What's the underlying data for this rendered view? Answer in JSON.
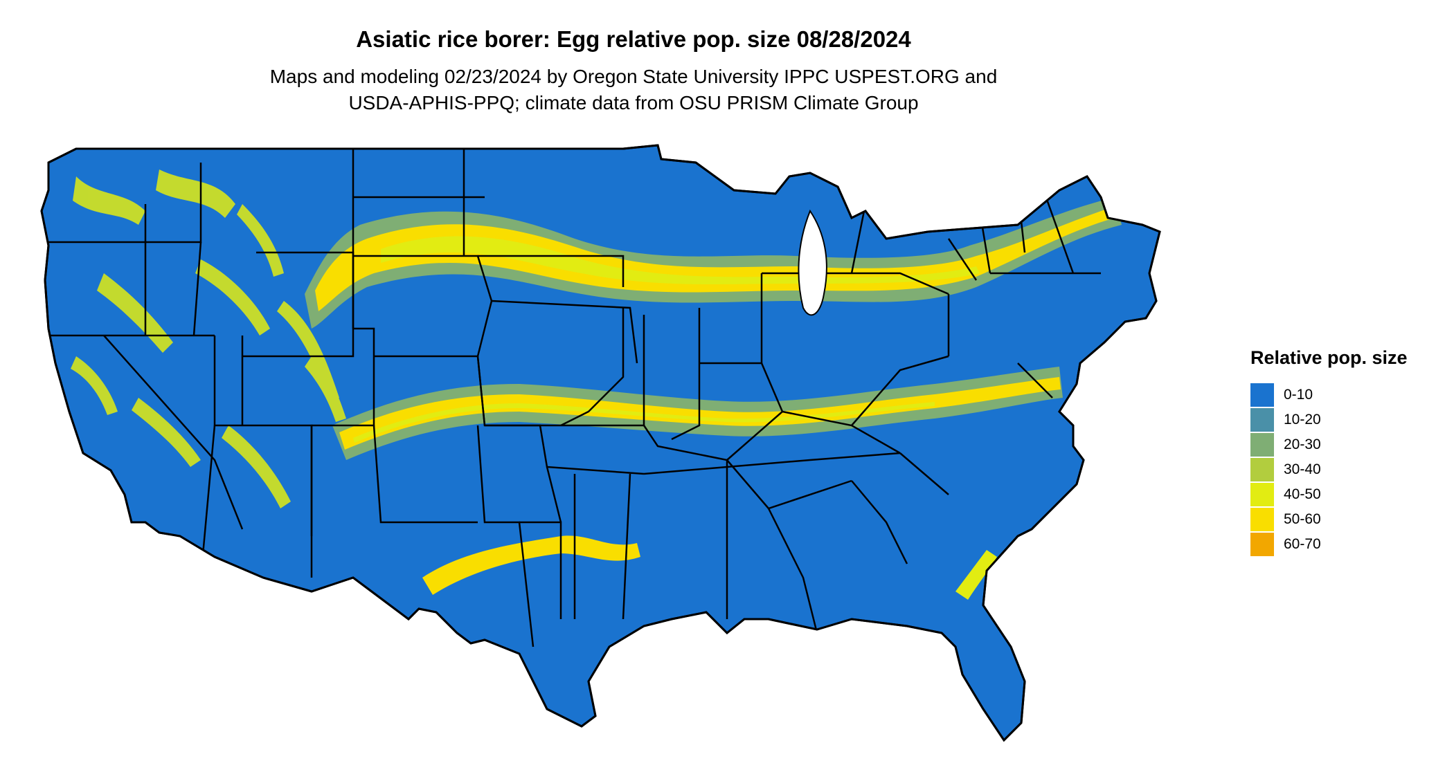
{
  "header": {
    "title": "Asiatic rice borer: Egg relative pop. size 08/28/2024",
    "subtitle_line1": "Maps and modeling 02/23/2024 by Oregon State University IPPC USPEST.ORG and",
    "subtitle_line2": "USDA-APHIS-PPQ; climate data from OSU PRISM Climate Group"
  },
  "map": {
    "region": "contiguous-united-states",
    "base_color": "#1a73cf",
    "border_color": "#000000"
  },
  "legend": {
    "title": "Relative pop. size",
    "items": [
      {
        "label": "0-10",
        "color": "#1a73cf"
      },
      {
        "label": "10-20",
        "color": "#4a90a8"
      },
      {
        "label": "20-30",
        "color": "#7fae74"
      },
      {
        "label": "30-40",
        "color": "#b2cd3e"
      },
      {
        "label": "40-50",
        "color": "#e2ec12"
      },
      {
        "label": "50-60",
        "color": "#f9de00"
      },
      {
        "label": "60-70",
        "color": "#f2a700"
      }
    ]
  }
}
